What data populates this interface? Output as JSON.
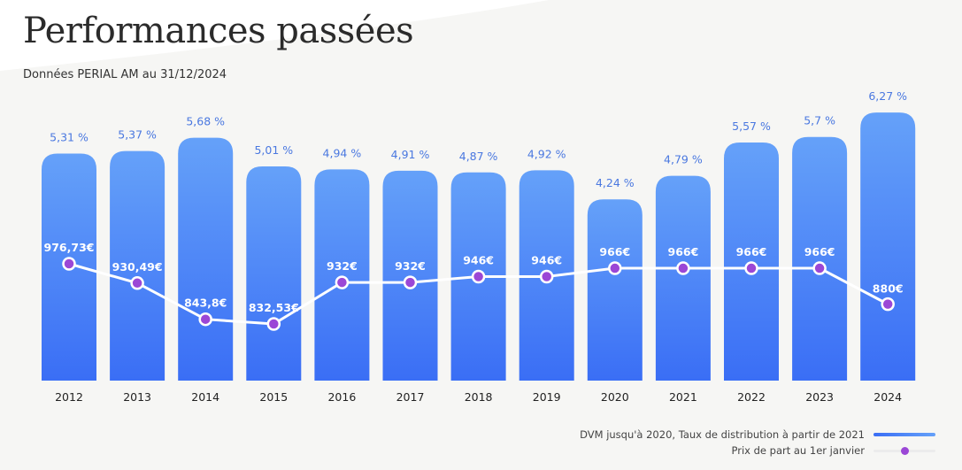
{
  "title": "Performances passées",
  "subtitle": "Données PERIAL AM au 31/12/2024",
  "colors": {
    "bar_top": "#65a1f9",
    "bar_bottom": "#3a6ef5",
    "label": "#4a78e0",
    "dot": "#9b47d6"
  },
  "chart_data": {
    "type": "bar+line",
    "categories": [
      "2012",
      "2013",
      "2014",
      "2015",
      "2016",
      "2017",
      "2018",
      "2019",
      "2020",
      "2021",
      "2022",
      "2023",
      "2024"
    ],
    "series": [
      {
        "name": "DVM jusqu'à 2020, Taux de distribution à partir de 2021",
        "type": "bar",
        "values": [
          5.31,
          5.37,
          5.68,
          5.01,
          4.94,
          4.91,
          4.87,
          4.92,
          4.24,
          4.79,
          5.57,
          5.7,
          6.27
        ],
        "labels": [
          "5,31 %",
          "5,37 %",
          "5,68 %",
          "5,01 %",
          "4,94 %",
          "4,91 %",
          "4,87 %",
          "4,92 %",
          "4,24 %",
          "4,79 %",
          "5,57 %",
          "5,7 %",
          "6,27 %"
        ]
      },
      {
        "name": "Prix de part au 1er janvier",
        "type": "line",
        "values": [
          976.73,
          930.49,
          843.8,
          832.53,
          932,
          932,
          946,
          946,
          966,
          966,
          966,
          966,
          880
        ],
        "labels": [
          "976,73€",
          "930,49€",
          "843,8€",
          "832,53€",
          "932€",
          "932€",
          "946€",
          "946€",
          "966€",
          "966€",
          "966€",
          "966€",
          "880€"
        ]
      }
    ],
    "legend": "bottom-right"
  }
}
